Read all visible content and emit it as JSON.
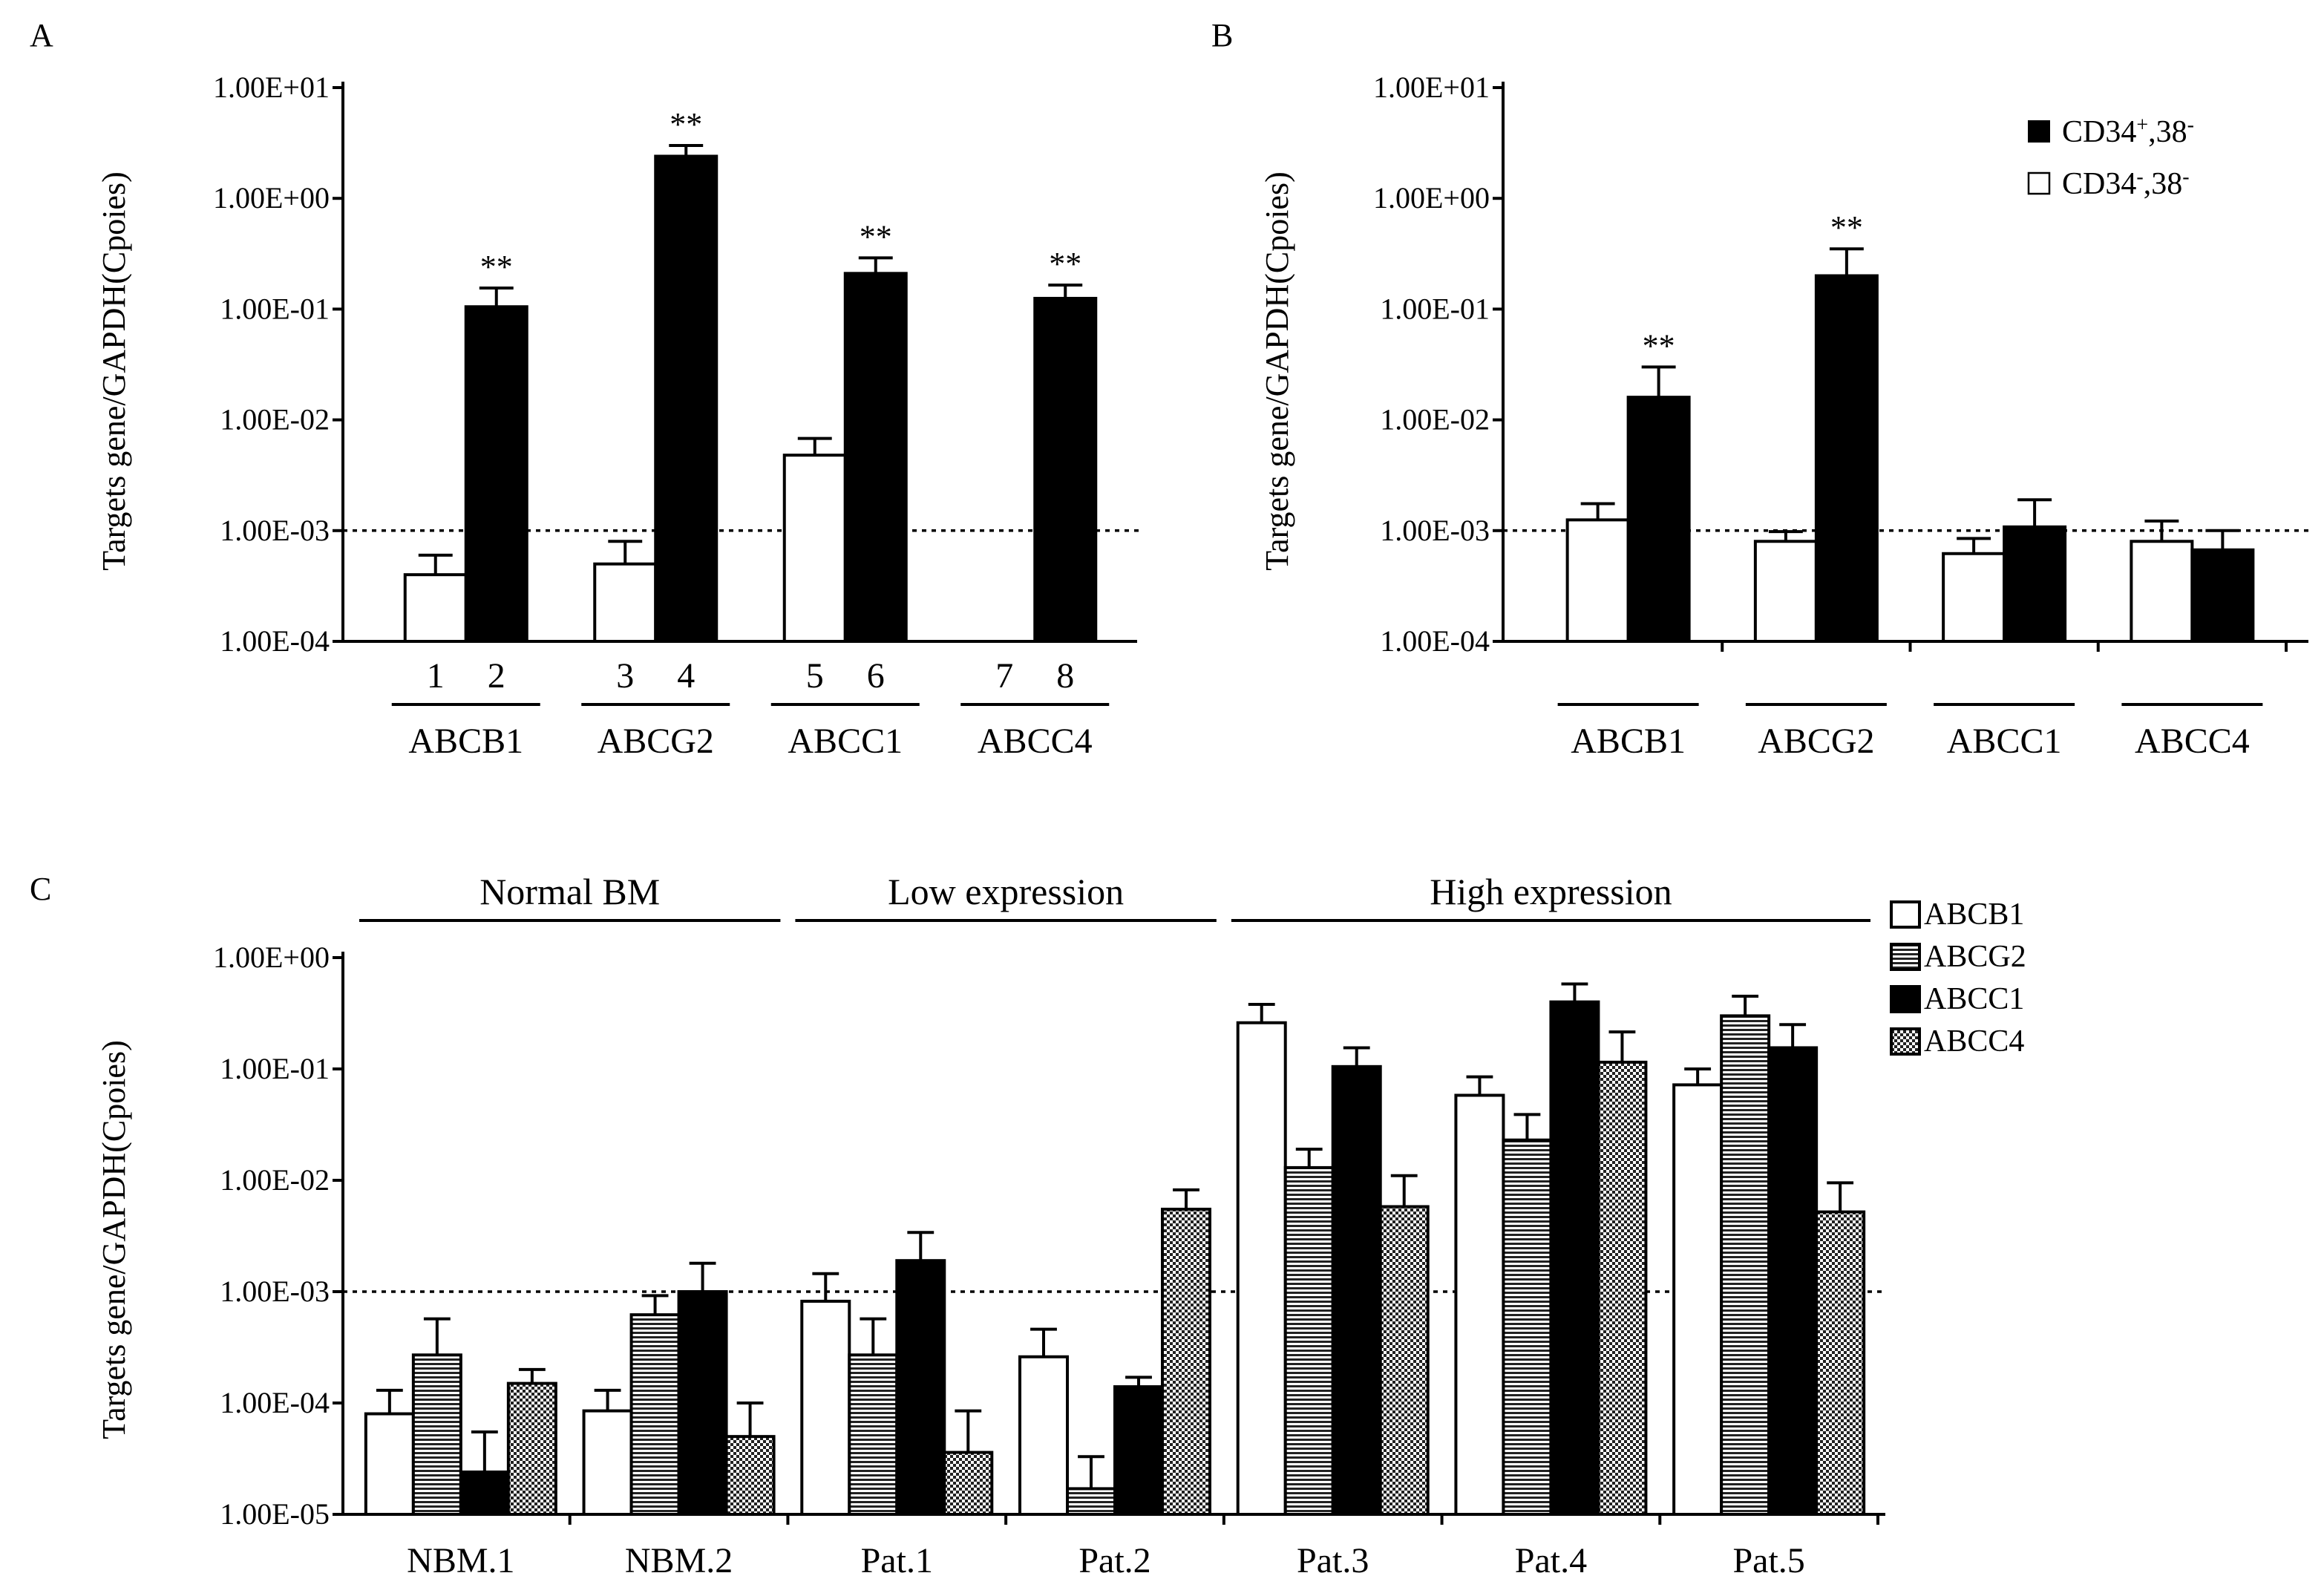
{
  "chart_data": [
    {
      "panel": "A",
      "type": "bar",
      "yscale": "log",
      "ylim": [
        0.0001,
        10
      ],
      "ylabel": "Targets gene/GAPDH(Cpoies)",
      "yticks": [
        "1.00E+01",
        "1.00E+00",
        "1.00E-01",
        "1.00E-02",
        "1.00E-03",
        "1.00E-04"
      ],
      "reference_line": 0.001,
      "categories": [
        "ABCB1",
        "ABCG2",
        "ABCC1",
        "ABCC4"
      ],
      "bar_numbers": [
        "1",
        "2",
        "3",
        "4",
        "5",
        "6",
        "7",
        "8"
      ],
      "series": [
        {
          "name": "CD34-,38-",
          "fill": "white",
          "values": [
            0.0004,
            0.0005,
            0.0048,
            null
          ],
          "errors": [
            0.0006,
            0.0008,
            0.0068,
            null
          ]
        },
        {
          "name": "CD34+,38-",
          "fill": "black",
          "values": [
            0.105,
            2.4,
            0.21,
            0.125
          ],
          "errors": [
            0.155,
            3.0,
            0.29,
            0.165
          ]
        }
      ],
      "annotations": [
        "**",
        "**",
        "**",
        "**"
      ]
    },
    {
      "panel": "B",
      "type": "bar",
      "yscale": "log",
      "ylim": [
        0.0001,
        10
      ],
      "ylabel": "Targets gene/GAPDH(Cpoies)",
      "yticks": [
        "1.00E+01",
        "1.00E+00",
        "1.00E-01",
        "1.00E-02",
        "1.00E-03",
        "1.00E-04"
      ],
      "reference_line": 0.001,
      "categories": [
        "ABCB1",
        "ABCG2",
        "ABCC1",
        "ABCC4"
      ],
      "series": [
        {
          "name": "CD34-,38-",
          "fill": "white",
          "values": [
            0.00125,
            0.0008,
            0.00062,
            0.0008
          ],
          "errors": [
            0.00175,
            0.00098,
            0.00085,
            0.00122
          ]
        },
        {
          "name": "CD34+,38-",
          "fill": "black",
          "values": [
            0.016,
            0.2,
            0.00108,
            0.00067
          ],
          "errors": [
            0.03,
            0.35,
            0.0019,
            0.001
          ]
        }
      ],
      "annotations": [
        "**",
        "**",
        "",
        ""
      ],
      "legend": [
        {
          "marker": "■",
          "label": "CD34",
          "sup": "+",
          "rest": ",38",
          "sup2": "-"
        },
        {
          "marker": "□",
          "label": "CD34",
          "sup": "-",
          "rest": ",38",
          "sup2": "-"
        }
      ]
    },
    {
      "panel": "C",
      "type": "bar",
      "yscale": "log",
      "ylim": [
        1e-05,
        1
      ],
      "ylabel": "Targets gene/GAPDH(Cpoies)",
      "yticks": [
        "1.00E+00",
        "1.00E-01",
        "1.00E-02",
        "1.00E-03",
        "1.00E-04",
        "1.00E-05"
      ],
      "reference_line": 0.001,
      "categories": [
        "NBM.1",
        "NBM.2",
        "Pat.1",
        "Pat.2",
        "Pat.3",
        "Pat.4",
        "Pat.5"
      ],
      "groups": [
        {
          "label": "Normal BM",
          "from": 0,
          "to": 1
        },
        {
          "label": "Low expression",
          "from": 2,
          "to": 3
        },
        {
          "label": "High expression",
          "from": 4,
          "to": 6
        }
      ],
      "series": [
        {
          "name": "ABCB1",
          "pattern": "white",
          "values": [
            8e-05,
            8.5e-05,
            0.00082,
            0.00026,
            0.26,
            0.058,
            0.072
          ],
          "errors": [
            0.00013,
            0.00013,
            0.00145,
            0.00046,
            0.38,
            0.085,
            0.1
          ]
        },
        {
          "name": "ABCG2",
          "pattern": "hlines",
          "values": [
            0.00027,
            0.00062,
            0.00027,
            1.7e-05,
            0.013,
            0.023,
            0.3
          ],
          "errors": [
            0.00057,
            0.00092,
            0.00057,
            3.3e-05,
            0.019,
            0.039,
            0.45
          ]
        },
        {
          "name": "ABCC1",
          "pattern": "black",
          "values": [
            2.4e-05,
            0.001,
            0.0019,
            0.00014,
            0.105,
            0.4,
            0.155
          ],
          "errors": [
            5.5e-05,
            0.0018,
            0.0034,
            0.00017,
            0.155,
            0.58,
            0.25
          ]
        },
        {
          "name": "ABCC4",
          "pattern": "dots",
          "values": [
            0.00015,
            5e-05,
            3.6e-05,
            0.0055,
            0.0058,
            0.115,
            0.0052
          ],
          "errors": [
            0.0002,
            0.0001,
            8.5e-05,
            0.0082,
            0.011,
            0.215,
            0.0095
          ]
        }
      ],
      "legend": [
        "ABCB1",
        "ABCG2",
        "ABCC1",
        "ABCC4"
      ]
    }
  ],
  "panel_letters": [
    "A",
    "B",
    "C"
  ]
}
